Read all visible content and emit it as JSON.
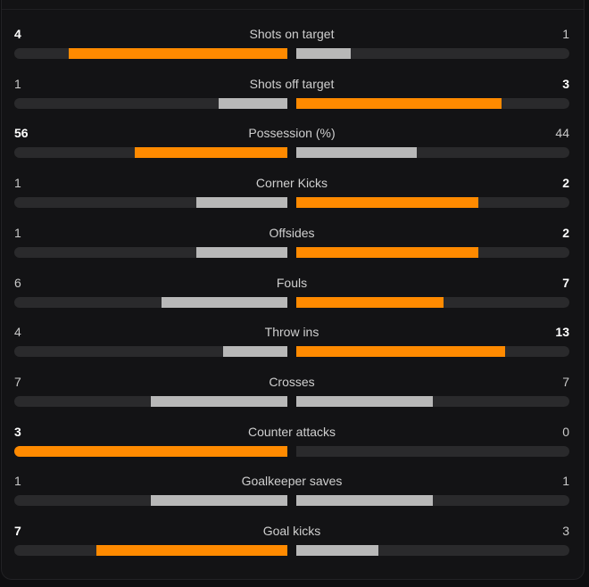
{
  "colors": {
    "leader": "#ff8a00",
    "trailer": "#b8b8b8",
    "track": "#2a2a2c"
  },
  "stats": [
    {
      "label": "Shots on target",
      "home": "4",
      "away": "1",
      "home_share": 0.8,
      "away_share": 0.2
    },
    {
      "label": "Shots off target",
      "home": "1",
      "away": "3",
      "home_share": 0.25,
      "away_share": 0.75
    },
    {
      "label": "Possession (%)",
      "home": "56",
      "away": "44",
      "home_share": 0.56,
      "away_share": 0.44
    },
    {
      "label": "Corner Kicks",
      "home": "1",
      "away": "2",
      "home_share": 0.333,
      "away_share": 0.667
    },
    {
      "label": "Offsides",
      "home": "1",
      "away": "2",
      "home_share": 0.333,
      "away_share": 0.667
    },
    {
      "label": "Fouls",
      "home": "6",
      "away": "7",
      "home_share": 0.462,
      "away_share": 0.538
    },
    {
      "label": "Throw ins",
      "home": "4",
      "away": "13",
      "home_share": 0.235,
      "away_share": 0.765
    },
    {
      "label": "Crosses",
      "home": "7",
      "away": "7",
      "home_share": 0.5,
      "away_share": 0.5
    },
    {
      "label": "Counter attacks",
      "home": "3",
      "away": "0",
      "home_share": 1.0,
      "away_share": 0.0
    },
    {
      "label": "Goalkeeper saves",
      "home": "1",
      "away": "1",
      "home_share": 0.5,
      "away_share": 0.5
    },
    {
      "label": "Goal kicks",
      "home": "7",
      "away": "3",
      "home_share": 0.7,
      "away_share": 0.3
    }
  ]
}
